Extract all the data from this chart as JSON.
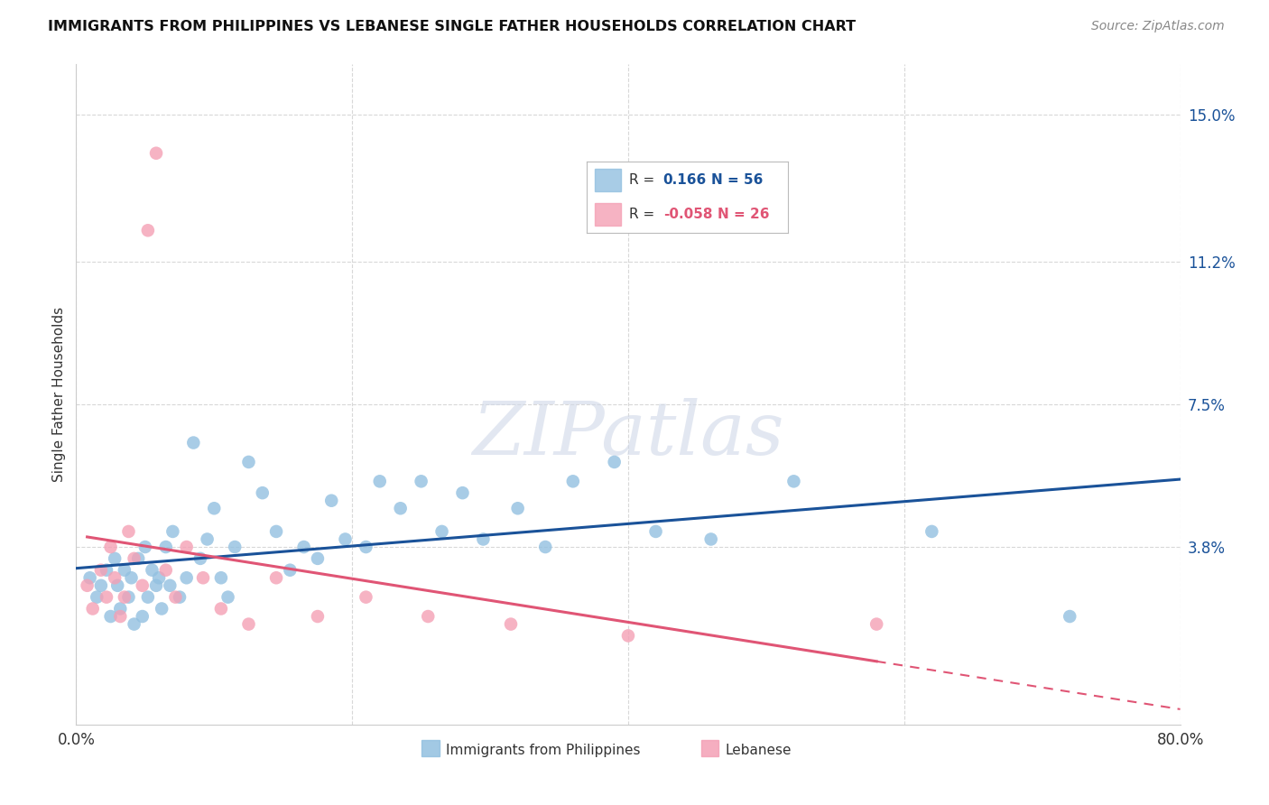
{
  "title": "IMMIGRANTS FROM PHILIPPINES VS LEBANESE SINGLE FATHER HOUSEHOLDS CORRELATION CHART",
  "source": "Source: ZipAtlas.com",
  "ylabel": "Single Father Households",
  "xlim": [
    0.0,
    0.8
  ],
  "ylim": [
    -0.008,
    0.163
  ],
  "ytick_vals": [
    0.038,
    0.075,
    0.112,
    0.15
  ],
  "ytick_labels": [
    "3.8%",
    "7.5%",
    "11.2%",
    "15.0%"
  ],
  "xtick_vals": [
    0.0,
    0.2,
    0.4,
    0.6,
    0.8
  ],
  "xtick_labels": [
    "0.0%",
    "",
    "",
    "",
    "80.0%"
  ],
  "blue_color": "#92c0e0",
  "pink_color": "#f4a0b5",
  "blue_line_color": "#1a5299",
  "pink_line_color": "#e05575",
  "watermark_text": "ZIPatlas",
  "background_color": "#ffffff",
  "grid_color": "#d8d8d8",
  "legend_r1_label": "R = ",
  "legend_r1_val": "0.166",
  "legend_r1_n": "N = 56",
  "legend_r2_label": "R = ",
  "legend_r2_val": "-0.058",
  "legend_r2_n": "N = 26",
  "blue_points_x": [
    0.01,
    0.015,
    0.018,
    0.022,
    0.025,
    0.028,
    0.03,
    0.032,
    0.035,
    0.038,
    0.04,
    0.042,
    0.045,
    0.048,
    0.05,
    0.052,
    0.055,
    0.058,
    0.06,
    0.062,
    0.065,
    0.068,
    0.07,
    0.075,
    0.08,
    0.085,
    0.09,
    0.095,
    0.1,
    0.105,
    0.11,
    0.115,
    0.125,
    0.135,
    0.145,
    0.155,
    0.165,
    0.175,
    0.185,
    0.195,
    0.21,
    0.22,
    0.235,
    0.25,
    0.265,
    0.28,
    0.295,
    0.32,
    0.34,
    0.36,
    0.39,
    0.42,
    0.46,
    0.52,
    0.62,
    0.72
  ],
  "blue_points_y": [
    0.03,
    0.025,
    0.028,
    0.032,
    0.02,
    0.035,
    0.028,
    0.022,
    0.032,
    0.025,
    0.03,
    0.018,
    0.035,
    0.02,
    0.038,
    0.025,
    0.032,
    0.028,
    0.03,
    0.022,
    0.038,
    0.028,
    0.042,
    0.025,
    0.03,
    0.065,
    0.035,
    0.04,
    0.048,
    0.03,
    0.025,
    0.038,
    0.06,
    0.052,
    0.042,
    0.032,
    0.038,
    0.035,
    0.05,
    0.04,
    0.038,
    0.055,
    0.048,
    0.055,
    0.042,
    0.052,
    0.04,
    0.048,
    0.038,
    0.055,
    0.06,
    0.042,
    0.04,
    0.055,
    0.042,
    0.02
  ],
  "pink_points_x": [
    0.008,
    0.012,
    0.018,
    0.022,
    0.025,
    0.028,
    0.032,
    0.035,
    0.038,
    0.042,
    0.048,
    0.052,
    0.058,
    0.065,
    0.072,
    0.08,
    0.092,
    0.105,
    0.125,
    0.145,
    0.175,
    0.21,
    0.255,
    0.315,
    0.4,
    0.58
  ],
  "pink_points_y": [
    0.028,
    0.022,
    0.032,
    0.025,
    0.038,
    0.03,
    0.02,
    0.025,
    0.042,
    0.035,
    0.028,
    0.12,
    0.14,
    0.032,
    0.025,
    0.038,
    0.03,
    0.022,
    0.018,
    0.03,
    0.02,
    0.025,
    0.02,
    0.018,
    0.015,
    0.018
  ]
}
